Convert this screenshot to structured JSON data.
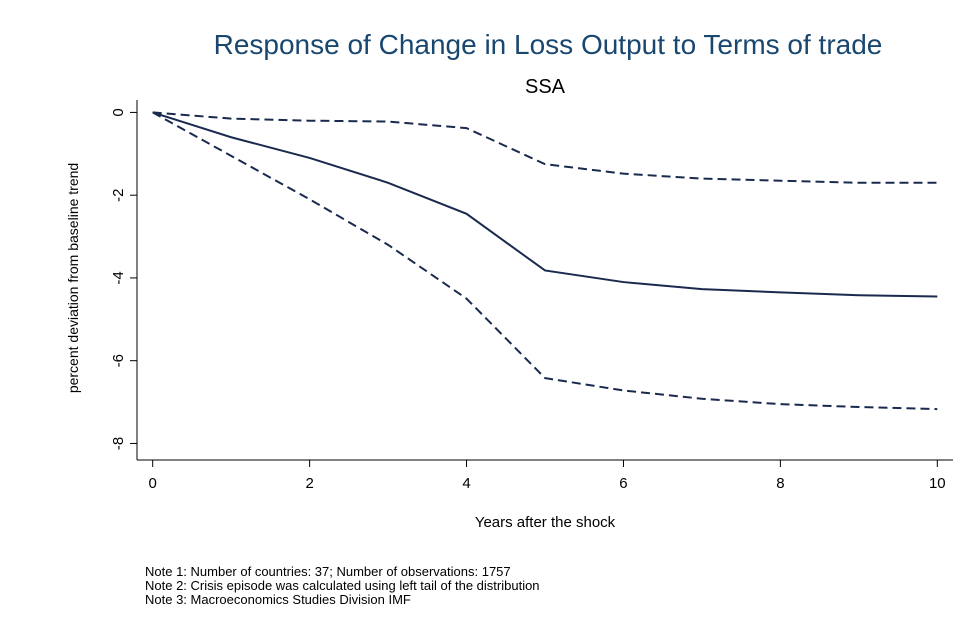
{
  "chart_data": {
    "type": "line",
    "title": "Response of Change in Loss Output to Terms of trade",
    "subtitle": "SSA",
    "x_label": "Years after the shock",
    "y_label": "percent deviation from baseline trend",
    "x": [
      0,
      1,
      2,
      3,
      4,
      5,
      6,
      7,
      8,
      9,
      10
    ],
    "series": [
      {
        "color": "#1a2a4f",
        "dashed": false,
        "values": [
          0,
          -0.6,
          -1.1,
          -1.7,
          -2.45,
          -3.82,
          -4.1,
          -4.27,
          -4.35,
          -4.42,
          -4.45
        ]
      },
      {
        "color": "#1a2a4f",
        "dashed": true,
        "values": [
          0,
          -0.15,
          -0.2,
          -0.22,
          -0.38,
          -1.25,
          -1.48,
          -1.6,
          -1.65,
          -1.7,
          -1.7
        ]
      },
      {
        "color": "#1a2a4f",
        "dashed": true,
        "values": [
          0,
          -1.05,
          -2.1,
          -3.2,
          -4.5,
          -6.42,
          -6.72,
          -6.92,
          -7.05,
          -7.12,
          -7.17
        ]
      }
    ],
    "xlim": [
      -0.2,
      10.2
    ],
    "xticks": [
      0,
      2,
      4,
      6,
      8,
      10
    ],
    "ylim": [
      -8.4,
      0.3
    ],
    "yticks": [
      0,
      -2,
      -4,
      -6,
      -8
    ],
    "grid": false,
    "notes": [
      "Note 1: Number of countries: 37; Number of observations: 1757",
      "Note 2: Crisis episode was calculated using left tail of the distribution",
      "Note 3: Macroeconomics Studies Division IMF"
    ]
  }
}
